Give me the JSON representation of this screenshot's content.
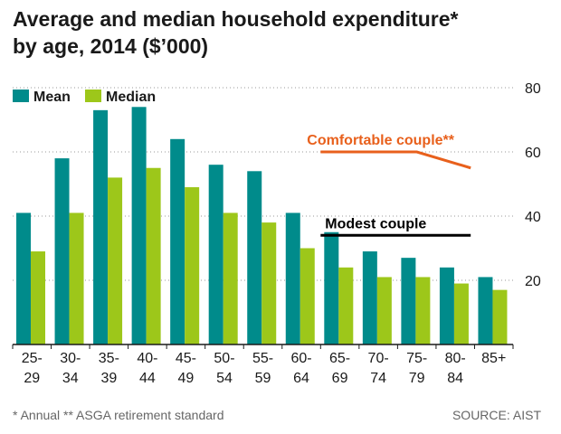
{
  "title": {
    "line1": "Average and median household expenditure*",
    "line2": "by age, 2014 ($’000)"
  },
  "footnote": "* Annual   ** ASGA retirement standard",
  "source": "SOURCE: AIST",
  "chart_data": {
    "type": "bar",
    "categories": [
      [
        "25-",
        "29"
      ],
      [
        "30-",
        "34"
      ],
      [
        "35-",
        "39"
      ],
      [
        "40-",
        "44"
      ],
      [
        "45-",
        "49"
      ],
      [
        "50-",
        "54"
      ],
      [
        "55-",
        "59"
      ],
      [
        "60-",
        "64"
      ],
      [
        "65-",
        "69"
      ],
      [
        "70-",
        "74"
      ],
      [
        "75-",
        "79"
      ],
      [
        "80-",
        "84"
      ],
      [
        "85+",
        ""
      ]
    ],
    "series": [
      {
        "name": "Mean",
        "color": "#008b8b",
        "values": [
          41,
          58,
          73,
          74,
          64,
          56,
          54,
          41,
          35,
          29,
          27,
          24,
          21
        ]
      },
      {
        "name": "Median",
        "color": "#9dc71a",
        "values": [
          29,
          41,
          52,
          55,
          49,
          41,
          38,
          30,
          24,
          21,
          21,
          19,
          17
        ]
      }
    ],
    "ylim": [
      0,
      80
    ],
    "yticks": [
      20,
      40,
      60,
      80
    ],
    "y_axis_side": "right",
    "grid": true,
    "legend": "top-left",
    "reference_lines": [
      {
        "label": "Comfortable couple**",
        "color": "#e8601c",
        "points": [
          [
            8.0,
            60
          ],
          [
            10.5,
            60
          ],
          [
            11.9,
            55
          ]
        ]
      },
      {
        "label": "Modest couple",
        "color": "#000000",
        "points": [
          [
            8.0,
            34
          ],
          [
            11.9,
            34
          ]
        ]
      }
    ]
  }
}
